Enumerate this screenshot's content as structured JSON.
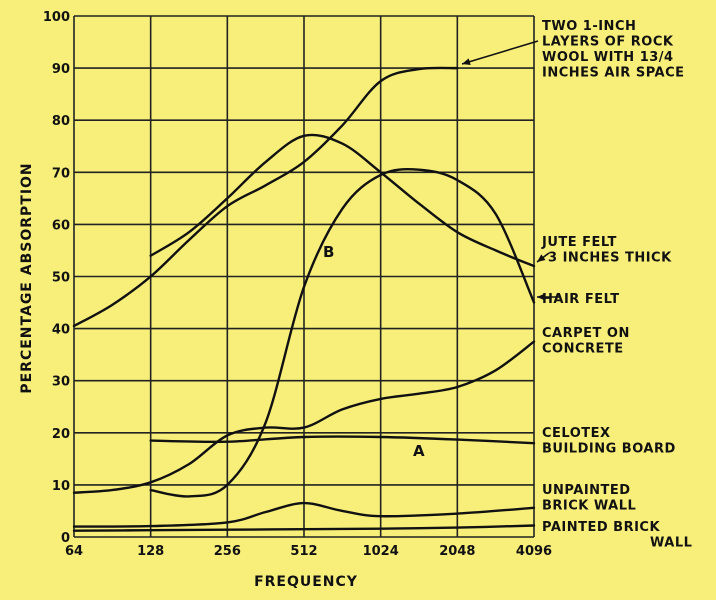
{
  "chart_data": {
    "type": "line",
    "title": "",
    "xlabel": "FREQUENCY",
    "ylabel": "PERCENTAGE ABSORPTION",
    "x_scale": "log2",
    "x_ticks": [
      "64",
      "128",
      "256",
      "512",
      "1024",
      "2048",
      "4096"
    ],
    "y_ticks": [
      "0",
      "10",
      "20",
      "30",
      "40",
      "50",
      "60",
      "70",
      "80",
      "90",
      "100"
    ],
    "xlim": [
      64,
      4096
    ],
    "ylim": [
      0,
      100
    ],
    "grid": true,
    "series": [
      {
        "name": "TWO 1-INCH LAYERS OF ROCK WOOL WITH 13/4 INCHES AIR SPACE",
        "x": [
          64,
          90,
          128,
          181,
          256,
          362,
          512,
          724,
          1024,
          1448,
          2048
        ],
        "y": [
          40.5,
          44.5,
          50,
          57,
          63.5,
          67.5,
          72,
          79,
          87.5,
          89.8,
          90
        ]
      },
      {
        "name": "JUTE FELT 3 INCHES THICK",
        "x": [
          128,
          181,
          256,
          362,
          512,
          724,
          1024,
          1448,
          2048,
          2896,
          4096
        ],
        "y": [
          54,
          58.5,
          65,
          72,
          77,
          75.5,
          70,
          64,
          58.5,
          55,
          52
        ]
      },
      {
        "name": "HAIR FELT",
        "x": [
          128,
          181,
          256,
          362,
          512,
          724,
          1024,
          1448,
          2048,
          2896,
          4096
        ],
        "y": [
          9,
          7.8,
          10,
          22,
          48,
          63,
          69.5,
          70.5,
          68.5,
          62,
          45
        ]
      },
      {
        "name": "CARPET ON CONCRETE",
        "x": [
          64,
          90,
          128,
          181,
          256,
          362,
          512,
          724,
          1024,
          1448,
          2048,
          2896,
          4096
        ],
        "y": [
          8.5,
          9,
          10.5,
          14,
          19.5,
          21,
          21,
          24.5,
          26.5,
          27.5,
          28.8,
          32,
          37.5
        ]
      },
      {
        "name": "CELOTEX BUILDING BOARD",
        "x": [
          128,
          256,
          512,
          1024,
          2048,
          4096
        ],
        "y": [
          18.5,
          18.3,
          19.2,
          19.2,
          18.7,
          18
        ]
      },
      {
        "name": "UNPAINTED BRICK WALL",
        "x": [
          64,
          128,
          256,
          362,
          512,
          724,
          1024,
          2048,
          4096
        ],
        "y": [
          2,
          2.1,
          2.8,
          4.8,
          6.5,
          5,
          4,
          4.5,
          5.6
        ]
      },
      {
        "name": "PAINTED BRICK WALL",
        "x": [
          64,
          128,
          256,
          512,
          1024,
          2048,
          4096
        ],
        "y": [
          1.2,
          1.3,
          1.4,
          1.5,
          1.6,
          1.8,
          2.2
        ]
      }
    ],
    "annotations": [
      "A",
      "B"
    ]
  },
  "labels": {
    "rock_wool": [
      "TWO 1-INCH",
      "LAYERS OF ROCK",
      "WOOL WITH 13/4",
      "INCHES AIR SPACE"
    ],
    "jute_felt": [
      "JUTE FELT",
      "3 INCHES THICK"
    ],
    "hair_felt": [
      "HAIR FELT"
    ],
    "carpet": [
      "CARPET ON",
      "CONCRETE"
    ],
    "celotex": [
      "CELOTEX",
      "BUILDING BOARD"
    ],
    "unpainted_brick": [
      "UNPAINTED",
      "BRICK WALL"
    ],
    "painted_brick": [
      "PAINTED BRICK",
      "WALL"
    ],
    "mark_a": "A",
    "mark_b": "B"
  }
}
